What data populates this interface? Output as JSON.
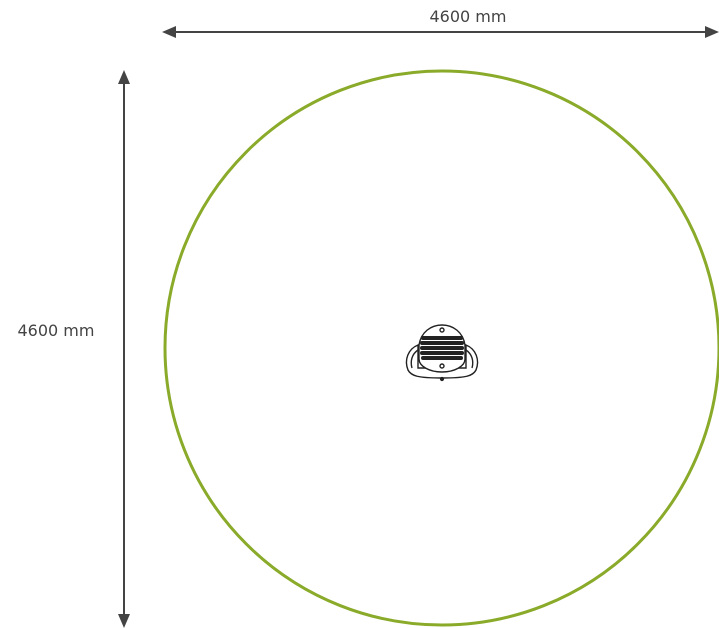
{
  "diagram": {
    "width_label": "4600 mm",
    "height_label": "4600 mm",
    "colors": {
      "safety_zone": "#8aaa2a",
      "dimension_line": "#444444",
      "equipment": "#222222"
    },
    "icons": {
      "equipment": "spring-rider-top-view-icon"
    }
  }
}
